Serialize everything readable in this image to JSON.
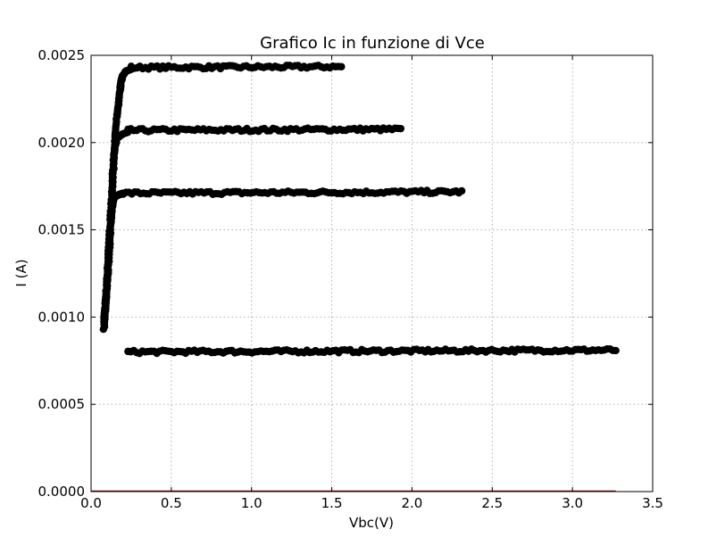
{
  "chart_data": {
    "type": "scatter",
    "title": "Grafico Ic in funzione di Vce",
    "xlabel": "Vbc(V)",
    "ylabel": "I (A)",
    "xlim": [
      0.0,
      3.5
    ],
    "ylim": [
      0.0,
      0.0025
    ],
    "xticks": [
      "0.0",
      "0.5",
      "1.0",
      "1.5",
      "2.0",
      "2.5",
      "3.0",
      "3.5"
    ],
    "yticks": [
      "0.0000",
      "0.0005",
      "0.0010",
      "0.0015",
      "0.0020",
      "0.0025"
    ],
    "grid": true,
    "marker_color": "#000000",
    "baseline_color": "#8b0000",
    "series": [
      {
        "x_rise": [
          0.08,
          0.09,
          0.1,
          0.11,
          0.12,
          0.13,
          0.14,
          0.15,
          0.16,
          0.17,
          0.18,
          0.19,
          0.2,
          0.22,
          0.25
        ],
        "y_rise": [
          0.00093,
          0.00105,
          0.00118,
          0.00132,
          0.00148,
          0.00165,
          0.00185,
          0.00203,
          0.00215,
          0.00222,
          0.0023,
          0.00236,
          0.00239,
          0.00241,
          0.00242
        ],
        "x_flat_start": 0.25,
        "x_flat_end": 1.56,
        "y_flat": 0.00243
      },
      {
        "x_rise": [
          0.08,
          0.09,
          0.1,
          0.11,
          0.12,
          0.13,
          0.14,
          0.15,
          0.16,
          0.18,
          0.2,
          0.23
        ],
        "y_rise": [
          0.00096,
          0.00108,
          0.00122,
          0.00138,
          0.00156,
          0.00174,
          0.0019,
          0.00198,
          0.00202,
          0.00204,
          0.00205,
          0.00206
        ],
        "x_flat_start": 0.23,
        "x_flat_end": 1.93,
        "y_flat": 0.00207
      },
      {
        "x_rise": [
          0.08,
          0.09,
          0.1,
          0.11,
          0.12,
          0.13,
          0.14,
          0.15,
          0.17,
          0.2
        ],
        "y_rise": [
          0.00096,
          0.00108,
          0.00122,
          0.00138,
          0.00152,
          0.00162,
          0.00167,
          0.00169,
          0.0017,
          0.00171
        ],
        "x_flat_start": 0.2,
        "x_flat_end": 2.31,
        "y_flat": 0.00171
      },
      {
        "x_rise": [],
        "y_rise": [],
        "x_flat_start": 0.23,
        "x_flat_end": 3.27,
        "y_flat": 0.0008
      }
    ],
    "baseline": {
      "y": 0.0,
      "x_start": 0.0,
      "x_end": 3.27
    }
  }
}
